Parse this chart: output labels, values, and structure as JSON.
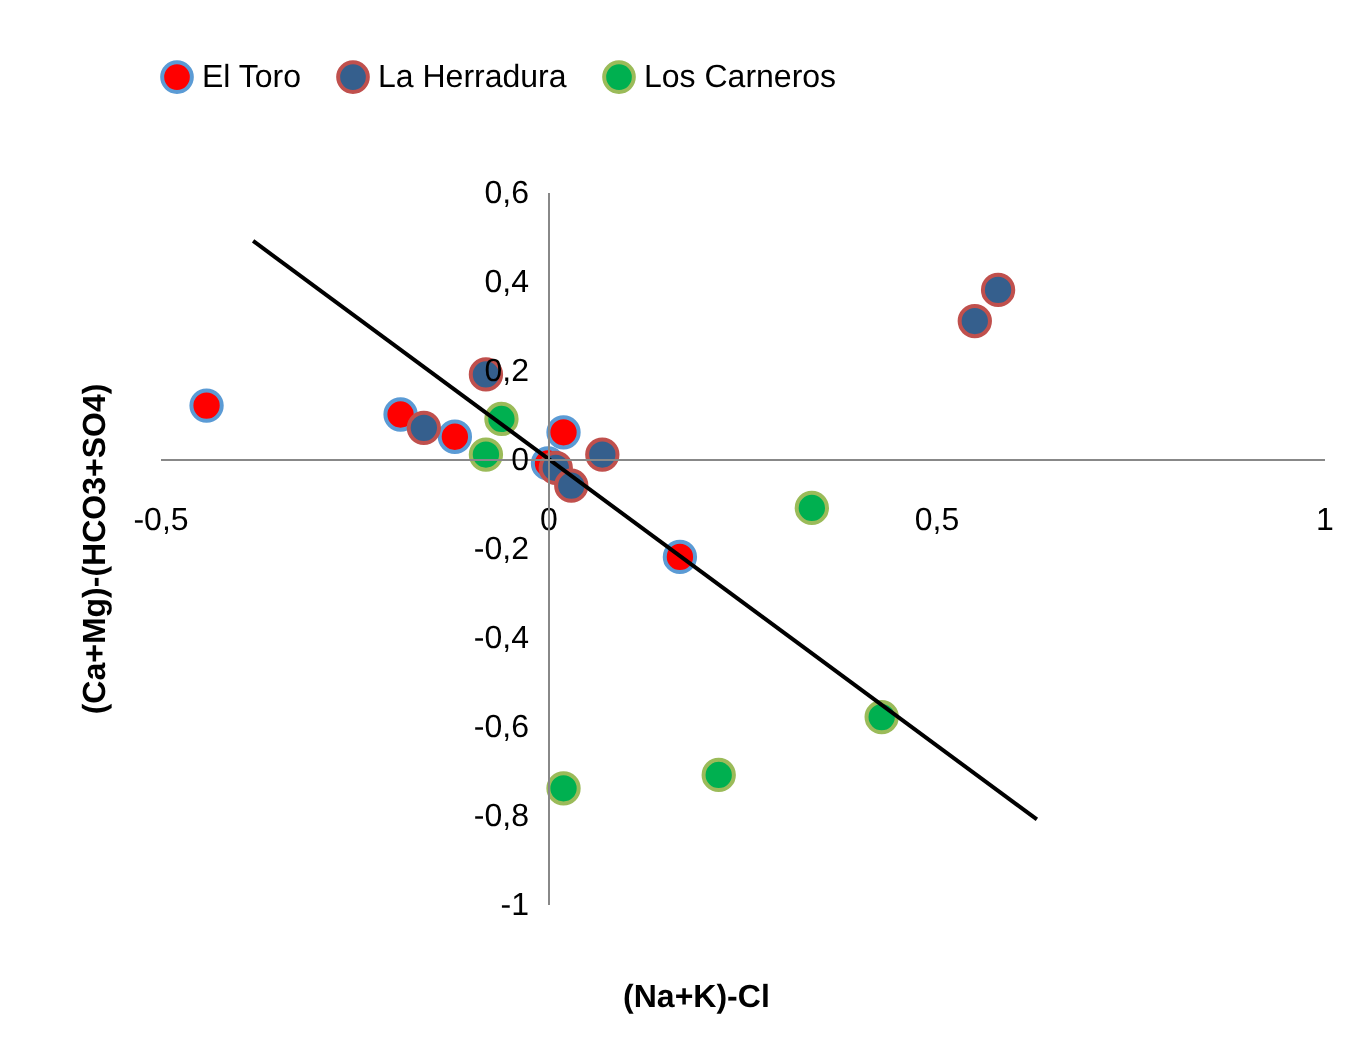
{
  "chart_data": {
    "type": "scatter",
    "xlabel": "(Na+K)-Cl",
    "ylabel": "(Ca+Mg)-(HCO3+SO4)",
    "xlim": [
      -0.5,
      1
    ],
    "ylim": [
      -1,
      0.6
    ],
    "xticks": [
      {
        "value": -0.5,
        "label": "-0,5"
      },
      0,
      {
        "value": 0.5,
        "label": "0,5"
      },
      1
    ],
    "yticks": [
      -1,
      {
        "value": -0.8,
        "label": "-0,8"
      },
      {
        "value": -0.6,
        "label": "-0,6"
      },
      {
        "value": -0.4,
        "label": "-0,4"
      },
      {
        "value": -0.2,
        "label": "-0,2"
      },
      0,
      {
        "value": 0.2,
        "label": "0,2"
      },
      {
        "value": 0.4,
        "label": "0,4"
      },
      {
        "value": 0.6,
        "label": "0,6"
      }
    ],
    "grid": false,
    "legend": "top",
    "marker": "circle",
    "series": [
      {
        "name": "El Toro",
        "color": "#ff0000",
        "x": [
          -0.44,
          -0.19,
          -0.12,
          0.02,
          0.0,
          0.17
        ],
        "values": [
          0.12,
          0.1,
          0.05,
          0.06,
          -0.01,
          -0.22
        ]
      },
      {
        "name": "La Herradura",
        "color": "#355f8d",
        "x": [
          -0.16,
          -0.08,
          0.01,
          0.03,
          0.07,
          0.55,
          0.58
        ],
        "values": [
          0.07,
          0.19,
          -0.02,
          -0.06,
          0.01,
          0.31,
          0.38
        ]
      },
      {
        "name": "Los Carneros",
        "color": "#00b050",
        "x": [
          -0.06,
          -0.08,
          0.34,
          0.43,
          0.22,
          0.02
        ],
        "values": [
          0.09,
          0.01,
          -0.11,
          -0.58,
          -0.71,
          -0.74
        ]
      },
      {
        "type": "line",
        "color": "#000000",
        "marker": "none",
        "line_style": "solid",
        "x": [
          -0.38,
          0.63
        ],
        "values": [
          0.49,
          -0.81
        ]
      }
    ]
  }
}
